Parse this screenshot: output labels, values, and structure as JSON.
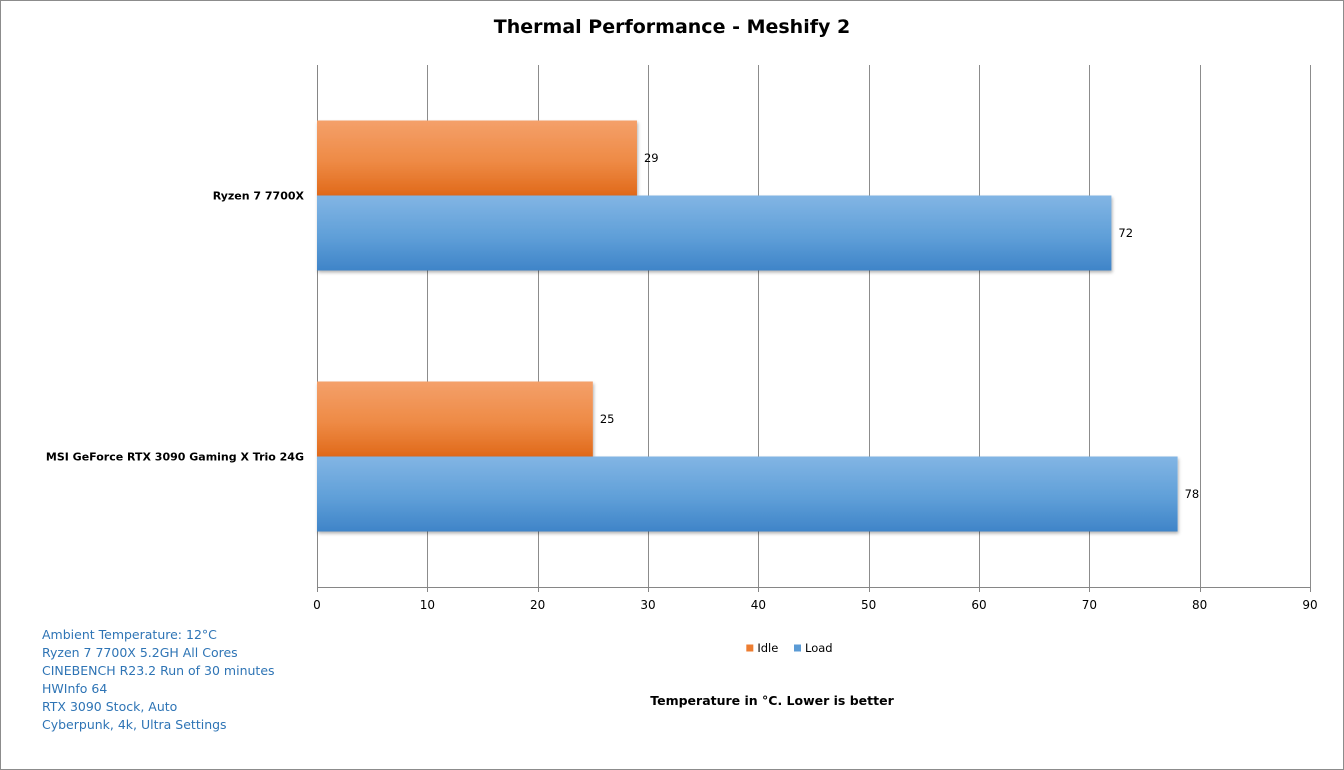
{
  "chart_data": {
    "type": "bar",
    "orientation": "horizontal",
    "title": "Thermal Performance - Meshify 2",
    "xlabel": "Temperature in °C. Lower is better",
    "ylabel": "",
    "categories": [
      "Ryzen 7 7700X",
      "MSI GeForce RTX 3090 Gaming X Trio 24G"
    ],
    "series": [
      {
        "name": "Idle",
        "values": [
          29,
          25
        ],
        "color": "#ed7d31"
      },
      {
        "name": "Load",
        "values": [
          72,
          78
        ],
        "color": "#5b9bd5"
      }
    ],
    "xlim": [
      0,
      90
    ],
    "ticks": [
      0,
      10,
      20,
      30,
      40,
      50,
      60,
      70,
      80,
      90
    ],
    "grid": true,
    "legend_position": "bottom"
  },
  "notes": [
    "Ambient Temperature: 12°C",
    "Ryzen 7 7700X  5.2GH All Cores",
    "CINEBENCH R23.2 Run of 30 minutes",
    "HWInfo 64",
    "RTX 3090 Stock, Auto",
    "Cyberpunk, 4k, Ultra Settings"
  ]
}
